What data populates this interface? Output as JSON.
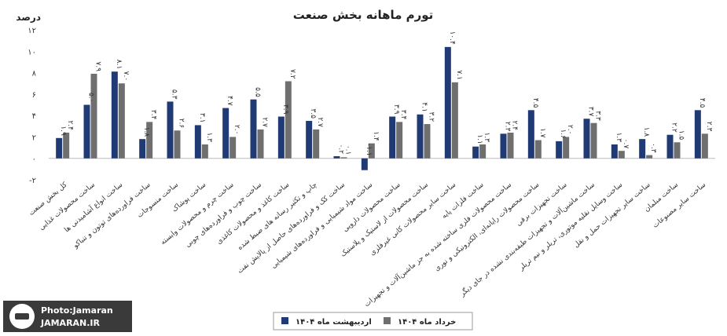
{
  "chart_data": {
    "type": "bar",
    "title": "تورم ماهانه بخش صنعت",
    "ylabel": "درصد",
    "ylim": [
      -2,
      12
    ],
    "yticks": [
      -2,
      0,
      2,
      4,
      6,
      8,
      10,
      12
    ],
    "ytick_labels": [
      "-۲",
      "۰",
      "۲",
      "۴",
      "۶",
      "۸",
      "۱۰",
      "۱۲"
    ],
    "grid": false,
    "legend_position": "bottom",
    "categories": [
      "کل بخش صنعت",
      "ساخت محصولات غذایی",
      "ساخت انواع آشامیدنی ها",
      "ساخت فراورده‌های توتون و تنباکو",
      "ساخت منسوجات",
      "ساخت پوشاک",
      "ساخت چرم و محصولات وابسته",
      "ساخت چوب و فراورده‌های چوبی",
      "ساخت کاغذ و محصولات کاغذی",
      "چاپ و تکثیر رسانه های ضبط شده",
      "ساخت کک و فراورده‌های حاصل از پالایش نفت",
      "ساخت مواد شیمیایی و فراورده‌های شیمیایی",
      "ساخت محصولات دارویی",
      "ساخت محصولات از لاستیک و پلاستیک",
      "ساخت سایر محصولات کانی غیرفلزی",
      "ساخت فلزات پایه",
      "ساخت محصولات فلزی ساخته شده به جز ماشین‌آلات و تجهیزات",
      "ساخت محصولات رایانه‌ای، الکترونیکی و نوری",
      "ساخت تجهیزات برقی",
      "ساخت ماشین‌آلات و تجهیزات طبقه‌بندی نشده در جای دیگر",
      "ساخت وسایل نقلیه موتوری، تریلر و نیم تریلر",
      "ساخت سایر تجهیزات حمل و نقل",
      "ساخت مبلمان",
      "ساخت سایر مصنوعات"
    ],
    "series": [
      {
        "name": "اردیبهشت ماه ۱۴۰۴",
        "color": "#1f3a74",
        "values": [
          1.9,
          5.0,
          8.1,
          1.8,
          5.3,
          3.1,
          4.7,
          5.5,
          3.9,
          3.5,
          0.2,
          -1.1,
          3.9,
          4.1,
          10.4,
          1.1,
          2.3,
          4.5,
          1.6,
          3.7,
          1.3,
          1.8,
          2.2,
          4.5
        ],
        "labels": [
          "۱.۹",
          "۵.۰",
          "۸.۱",
          "۱.۸",
          "۵.۳",
          "۳.۱",
          "۴.۷",
          "۵.۵",
          "۳.۹",
          "۳.۵",
          "۰.۲",
          "-۱.۱",
          "۳.۹",
          "۴.۱",
          "۱۰.۴",
          "۱.۱",
          "۲.۳",
          "۴.۵",
          "۱.۶",
          "۳.۷",
          "۱.۳",
          "۱.۸",
          "۲.۲",
          "۴.۵"
        ]
      },
      {
        "name": "خرداد ماه ۱۴۰۴",
        "color": "#6f6f6f",
        "values": [
          2.4,
          7.9,
          7.0,
          3.4,
          2.6,
          1.3,
          2.0,
          2.7,
          7.2,
          2.7,
          0.1,
          1.4,
          3.4,
          3.2,
          7.1,
          1.3,
          2.4,
          1.7,
          2.0,
          3.3,
          0.7,
          0.3,
          1.5,
          2.3
        ],
        "labels": [
          "۲.۴",
          "۷.۹",
          "۷.۰",
          "۳.۴",
          "۲.۶",
          "۱.۳",
          "۲.۰",
          "۲.۷",
          "۷.۲",
          "۲.۷",
          "۰.۱",
          "۱.۴",
          "۳.۴",
          "۳.۲",
          "۷.۱",
          "۱.۳",
          "۲.۴",
          "۱.۷",
          "۲.۰",
          "۳.۳",
          "۰.۷",
          "۰.۳",
          "۱.۵",
          "۲.۳"
        ]
      }
    ]
  },
  "watermark": {
    "line1": "Photo:Jamaran",
    "line2": "JAMARAN.IR",
    "logo": "jamaran-logo-icon"
  }
}
